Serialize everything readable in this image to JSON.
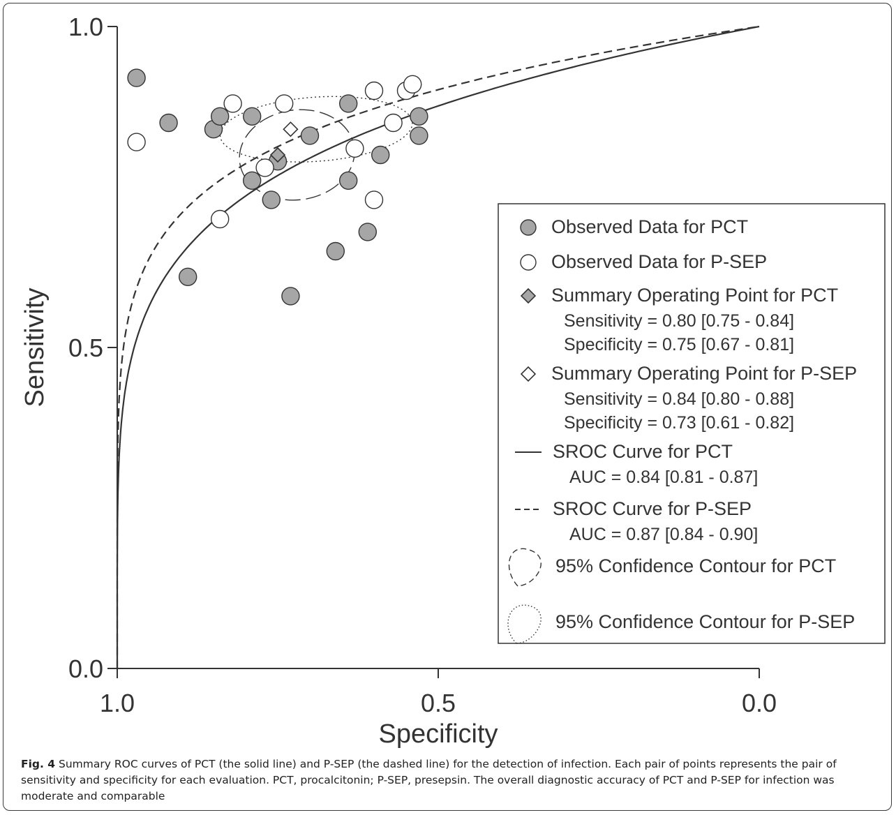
{
  "caption": {
    "label": "Fig. 4",
    "text": "Summary ROC curves of PCT (the solid line) and P-SEP (the dashed line) for the detection of infection. Each pair of points represents the pair of sensitivity and specificity for each evaluation. PCT, procalcitonin; P-SEP, presepsin. The overall diagnostic accuracy of PCT and P-SEP for infection was moderate and comparable"
  },
  "chart_data": {
    "type": "scatter",
    "xlabel": "Specificity",
    "ylabel": "Sensitivity",
    "xlim": [
      1.0,
      0.0
    ],
    "ylim": [
      0.0,
      1.0
    ],
    "x_ticks": [
      "1.0",
      "0.5",
      "0.0"
    ],
    "y_ticks": [
      "0.0",
      "0.5",
      "1.0"
    ],
    "grid": false,
    "legend_position": "bottom-right",
    "legend": [
      {
        "key": "pct_obs",
        "label": "Observed Data for PCT"
      },
      {
        "key": "psep_obs",
        "label": "Observed Data for P-SEP"
      },
      {
        "key": "pct_sum",
        "label": "Summary Operating Point for PCT",
        "sub": [
          "Sensitivity = 0.80 [0.75 - 0.84]",
          "Specificity = 0.75 [0.67 - 0.81]"
        ]
      },
      {
        "key": "psep_sum",
        "label": "Summary Operating Point for P-SEP",
        "sub": [
          "Sensitivity = 0.84 [0.80 - 0.88]",
          "Specificity = 0.73 [0.61 - 0.82]"
        ]
      },
      {
        "key": "pct_curve",
        "label": "SROC Curve for PCT",
        "sub": [
          "AUC = 0.84 [0.81 - 0.87]"
        ]
      },
      {
        "key": "psep_curve",
        "label": "SROC Curve for P-SEP",
        "sub": [
          "AUC = 0.87 [0.84 - 0.90]"
        ]
      },
      {
        "key": "pct_contour",
        "label": "95% Confidence Contour for PCT"
      },
      {
        "key": "psep_contour",
        "label": "95% Confidence Contour for P-SEP"
      }
    ],
    "pct_observed": [
      {
        "spec": 0.97,
        "sens": 0.92
      },
      {
        "spec": 0.92,
        "sens": 0.85
      },
      {
        "spec": 0.85,
        "sens": 0.84
      },
      {
        "spec": 0.84,
        "sens": 0.86
      },
      {
        "spec": 0.79,
        "sens": 0.86
      },
      {
        "spec": 0.7,
        "sens": 0.83
      },
      {
        "spec": 0.64,
        "sens": 0.88
      },
      {
        "spec": 0.53,
        "sens": 0.86
      },
      {
        "spec": 0.53,
        "sens": 0.83
      },
      {
        "spec": 0.59,
        "sens": 0.8
      },
      {
        "spec": 0.75,
        "sens": 0.79
      },
      {
        "spec": 0.79,
        "sens": 0.76
      },
      {
        "spec": 0.76,
        "sens": 0.73
      },
      {
        "spec": 0.64,
        "sens": 0.76
      },
      {
        "spec": 0.61,
        "sens": 0.68
      },
      {
        "spec": 0.66,
        "sens": 0.65
      },
      {
        "spec": 0.89,
        "sens": 0.61
      },
      {
        "spec": 0.73,
        "sens": 0.58
      }
    ],
    "psep_observed": [
      {
        "spec": 0.97,
        "sens": 0.82
      },
      {
        "spec": 0.82,
        "sens": 0.88
      },
      {
        "spec": 0.74,
        "sens": 0.88
      },
      {
        "spec": 0.6,
        "sens": 0.9
      },
      {
        "spec": 0.55,
        "sens": 0.9
      },
      {
        "spec": 0.54,
        "sens": 0.91
      },
      {
        "spec": 0.57,
        "sens": 0.85
      },
      {
        "spec": 0.63,
        "sens": 0.81
      },
      {
        "spec": 0.77,
        "sens": 0.78
      },
      {
        "spec": 0.6,
        "sens": 0.73
      },
      {
        "spec": 0.84,
        "sens": 0.7
      }
    ],
    "pct_summary": {
      "spec": 0.75,
      "sens": 0.8
    },
    "psep_summary": {
      "spec": 0.73,
      "sens": 0.84
    },
    "pct_sroc_auc": 0.84,
    "psep_sroc_auc": 0.87,
    "pct_contour": {
      "center_spec": 0.72,
      "center_sens": 0.8,
      "spec_halfwidth": 0.09,
      "sens_halfwidth": 0.07
    },
    "psep_contour": {
      "center_spec": 0.69,
      "center_sens": 0.84,
      "spec_halfwidth": 0.15,
      "sens_halfwidth": 0.05
    },
    "colors": {
      "pct_fill": "#a6a6a6",
      "psep_fill": "#ffffff",
      "stroke": "#333333",
      "text": "#333333"
    }
  }
}
